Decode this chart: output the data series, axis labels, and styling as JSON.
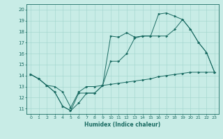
{
  "title": "",
  "xlabel": "Humidex (Indice chaleur)",
  "xlim": [
    -0.5,
    23.5
  ],
  "ylim": [
    10.5,
    20.5
  ],
  "xticks": [
    0,
    1,
    2,
    3,
    4,
    5,
    6,
    7,
    8,
    9,
    10,
    11,
    12,
    13,
    14,
    15,
    16,
    17,
    18,
    19,
    20,
    21,
    22,
    23
  ],
  "yticks": [
    11,
    12,
    13,
    14,
    15,
    16,
    17,
    18,
    19,
    20
  ],
  "background_color": "#c8ece6",
  "grid_color": "#a0d4cc",
  "line_color": "#1a6b62",
  "lines": [
    {
      "x": [
        0,
        1,
        2,
        3,
        4,
        5,
        6,
        7,
        8,
        9,
        10,
        11,
        12,
        13,
        14,
        15,
        16,
        17,
        18,
        19,
        20,
        21,
        22,
        23
      ],
      "y": [
        14.1,
        13.7,
        13.1,
        12.5,
        11.2,
        10.8,
        11.5,
        12.4,
        12.4,
        13.1,
        17.6,
        17.5,
        17.9,
        17.5,
        17.6,
        17.6,
        19.6,
        19.7,
        19.4,
        19.1,
        18.2,
        17.0,
        16.1,
        14.3
      ]
    },
    {
      "x": [
        0,
        1,
        2,
        3,
        4,
        5,
        6,
        7,
        8,
        9,
        10,
        11,
        12,
        13,
        14,
        15,
        16,
        17,
        18,
        19,
        20,
        21,
        22,
        23
      ],
      "y": [
        14.1,
        13.7,
        13.1,
        12.5,
        11.2,
        10.8,
        12.4,
        12.4,
        12.4,
        13.1,
        15.3,
        15.3,
        16.0,
        17.4,
        17.6,
        17.6,
        17.6,
        17.6,
        18.2,
        19.1,
        18.2,
        17.0,
        16.1,
        14.3
      ]
    },
    {
      "x": [
        0,
        1,
        2,
        3,
        4,
        5,
        6,
        7,
        8,
        9,
        10,
        11,
        12,
        13,
        14,
        15,
        16,
        17,
        18,
        19,
        20,
        21,
        22,
        23
      ],
      "y": [
        14.1,
        13.7,
        13.1,
        13.0,
        12.5,
        11.1,
        12.5,
        13.0,
        13.0,
        13.1,
        13.2,
        13.3,
        13.4,
        13.5,
        13.6,
        13.7,
        13.9,
        14.0,
        14.1,
        14.2,
        14.3,
        14.3,
        14.3,
        14.3
      ]
    }
  ]
}
